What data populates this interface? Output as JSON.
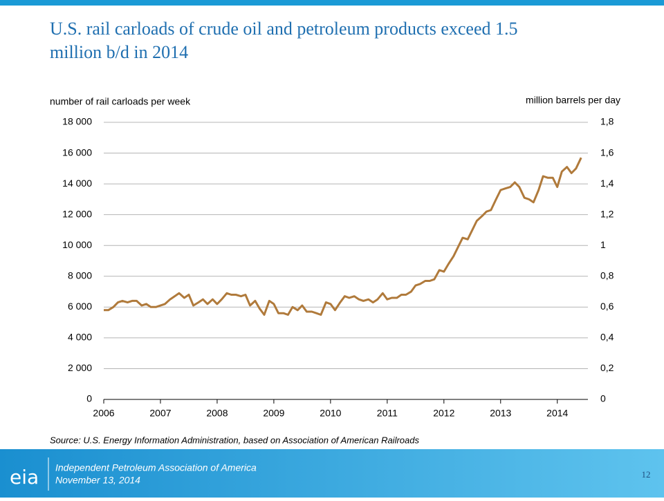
{
  "chart_data": {
    "type": "line",
    "title": "U.S. rail carloads of crude oil and petroleum products exceed 1.5 million b/d in 2014",
    "y_label": "number of rail carloads per week",
    "y2_label": "million barrels per day",
    "source": "Source: U.S. Energy Information Administration, based on Association of American Railroads",
    "x": [
      2006,
      2006.08,
      2006.17,
      2006.25,
      2006.33,
      2006.42,
      2006.5,
      2006.58,
      2006.67,
      2006.75,
      2006.83,
      2006.92,
      2007,
      2007.08,
      2007.17,
      2007.25,
      2007.33,
      2007.42,
      2007.5,
      2007.58,
      2007.67,
      2007.75,
      2007.83,
      2007.92,
      2008,
      2008.08,
      2008.17,
      2008.25,
      2008.33,
      2008.42,
      2008.5,
      2008.58,
      2008.67,
      2008.75,
      2008.83,
      2008.92,
      2009,
      2009.08,
      2009.17,
      2009.25,
      2009.33,
      2009.42,
      2009.5,
      2009.58,
      2009.67,
      2009.75,
      2009.83,
      2009.92,
      2010,
      2010.08,
      2010.17,
      2010.25,
      2010.33,
      2010.42,
      2010.5,
      2010.58,
      2010.67,
      2010.75,
      2010.83,
      2010.92,
      2011,
      2011.08,
      2011.17,
      2011.25,
      2011.33,
      2011.42,
      2011.5,
      2011.58,
      2011.67,
      2011.75,
      2011.83,
      2011.92,
      2012,
      2012.08,
      2012.17,
      2012.25,
      2012.33,
      2012.42,
      2012.5,
      2012.58,
      2012.67,
      2012.75,
      2012.83,
      2012.92,
      2013,
      2013.08,
      2013.17,
      2013.25,
      2013.33,
      2013.42,
      2013.5,
      2013.58,
      2013.67,
      2013.75,
      2013.83,
      2013.92,
      2014,
      2014.08,
      2014.17,
      2014.25,
      2014.33,
      2014.42
    ],
    "series": [
      {
        "name": "rail carloads",
        "color": "#b07a3b",
        "values": [
          5800,
          5800,
          6000,
          6300,
          6400,
          6300,
          6400,
          6400,
          6100,
          6200,
          6000,
          6000,
          6100,
          6200,
          6500,
          6700,
          6900,
          6600,
          6800,
          6100,
          6300,
          6500,
          6200,
          6500,
          6200,
          6500,
          6900,
          6800,
          6800,
          6700,
          6800,
          6100,
          6400,
          5900,
          5500,
          6400,
          6200,
          5600,
          5600,
          5500,
          6000,
          5800,
          6100,
          5700,
          5700,
          5600,
          5500,
          6300,
          6200,
          5800,
          6300,
          6700,
          6600,
          6700,
          6500,
          6400,
          6500,
          6300,
          6500,
          6900,
          6500,
          6600,
          6600,
          6800,
          6800,
          7000,
          7400,
          7500,
          7700,
          7700,
          7800,
          8400,
          8300,
          8800,
          9300,
          9900,
          10500,
          10400,
          11000,
          11600,
          11900,
          12200,
          12300,
          13000,
          13600,
          13700,
          13800,
          14100,
          13800,
          13100,
          13000,
          12800,
          13600,
          14500,
          14400,
          14400,
          13800,
          14800,
          15100,
          14700,
          15000,
          15700
        ]
      }
    ],
    "xlim": [
      2006,
      2014.54
    ],
    "xticks": [
      2006,
      2007,
      2008,
      2009,
      2010,
      2011,
      2012,
      2013,
      2014
    ],
    "ylim": [
      0,
      18000
    ],
    "yticks": [
      0,
      {
        "value": 2000,
        "label": "2 000"
      },
      {
        "value": 4000,
        "label": "4 000"
      },
      {
        "value": 6000,
        "label": "6 000"
      },
      {
        "value": 8000,
        "label": "8 000"
      },
      {
        "value": 10000,
        "label": "10 000"
      },
      {
        "value": 12000,
        "label": "12 000"
      },
      {
        "value": 14000,
        "label": "14 000"
      },
      {
        "value": 16000,
        "label": "16 000"
      },
      {
        "value": 18000,
        "label": "18 000"
      }
    ],
    "y2lim": [
      0,
      1.8
    ],
    "y2ticks": [
      0,
      {
        "value": 0.2,
        "label": "0,2"
      },
      {
        "value": 0.4,
        "label": "0,4"
      },
      {
        "value": 0.6,
        "label": "0,6"
      },
      {
        "value": 0.8,
        "label": "0,8"
      },
      1,
      {
        "value": 1.2,
        "label": "1,2"
      },
      {
        "value": 1.4,
        "label": "1,4"
      },
      {
        "value": 1.6,
        "label": "1,6"
      },
      {
        "value": 1.8,
        "label": "1,8"
      }
    ],
    "grid": true
  },
  "footer": {
    "logo": "eia",
    "organization": "Independent Petroleum Association of America",
    "date": "November 13, 2014",
    "page": "12"
  }
}
